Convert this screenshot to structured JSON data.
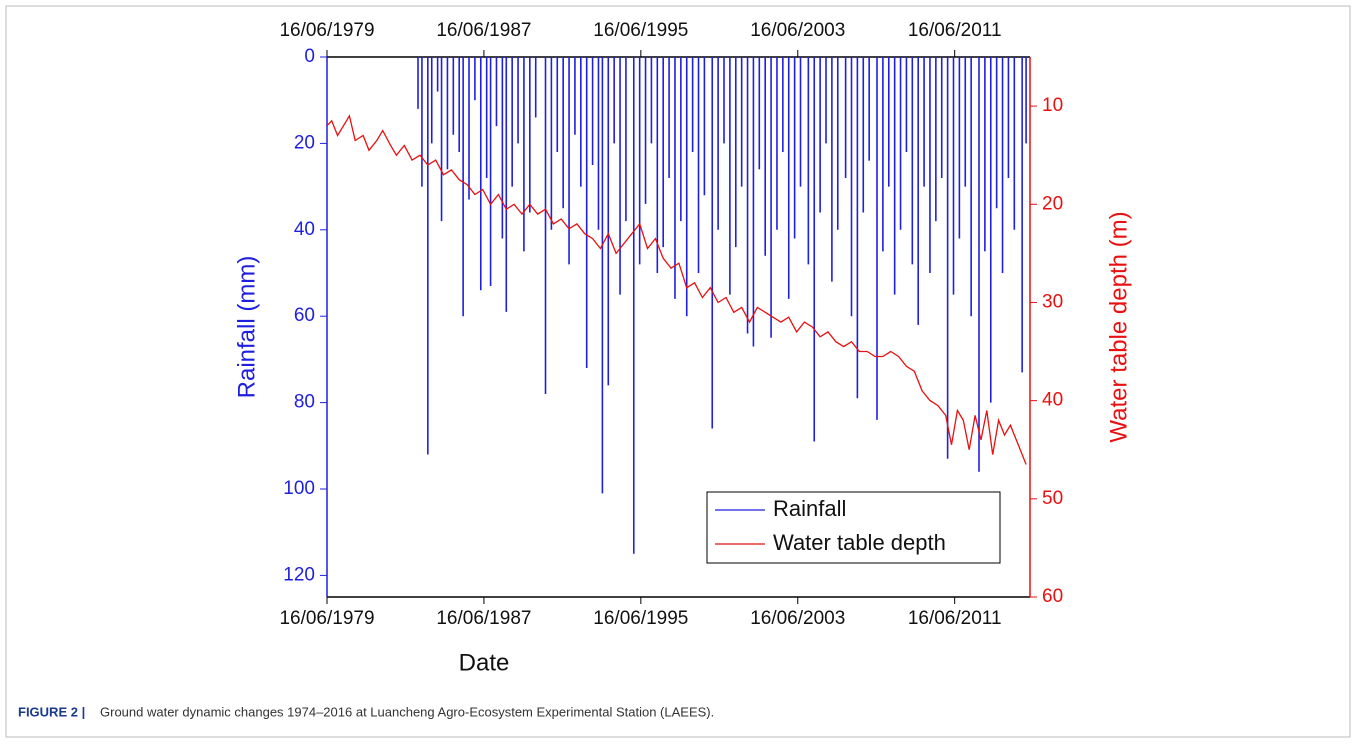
{
  "chart_data": {
    "type": "spike-line",
    "x_label": "Date",
    "y_label": "Rainfall (mm)",
    "y2_label": "Water table depth (m)",
    "caption_label": "FIGURE 2 |",
    "caption": "Ground water dynamic changes 1974–2016 at Luancheng Agro-Ecosystem Experimental Station (LAEES).",
    "xlim": [
      1979.46,
      2015.3
    ],
    "xticks": [
      {
        "value": 1979.46,
        "label": "16/06/1979"
      },
      {
        "value": 1987.46,
        "label": "16/06/1987"
      },
      {
        "value": 1995.46,
        "label": "16/06/1995"
      },
      {
        "value": 2003.46,
        "label": "16/06/2003"
      },
      {
        "value": 2011.46,
        "label": "16/06/2011"
      }
    ],
    "ylim": [
      0,
      125
    ],
    "yticks": [
      0,
      20,
      40,
      60,
      80,
      100,
      120
    ],
    "y_reversed": true,
    "y_color": "#1f1fe0",
    "y2lim": [
      5,
      60
    ],
    "y2ticks": [
      10,
      20,
      30,
      40,
      50,
      60
    ],
    "y2_reversed": true,
    "y2_color": "#e81010",
    "legend": "lower-right",
    "series": [
      {
        "name": "Rainfall",
        "color": "#1f1fe0",
        "style": "spikes",
        "x": [
          1984.1,
          1984.3,
          1984.6,
          1984.8,
          1985.1,
          1985.3,
          1985.6,
          1985.9,
          1986.2,
          1986.4,
          1986.7,
          1987.0,
          1987.3,
          1987.6,
          1987.8,
          1988.1,
          1988.4,
          1988.6,
          1988.9,
          1989.2,
          1989.5,
          1989.8,
          1990.1,
          1990.6,
          1990.9,
          1991.2,
          1991.5,
          1991.8,
          1992.1,
          1992.4,
          1992.7,
          1993.0,
          1993.3,
          1993.5,
          1993.8,
          1994.1,
          1994.4,
          1994.7,
          1995.1,
          1995.4,
          1995.7,
          1996.0,
          1996.3,
          1996.6,
          1996.9,
          1997.2,
          1997.5,
          1997.8,
          1998.1,
          1998.4,
          1998.7,
          1999.1,
          1999.4,
          1999.7,
          2000.0,
          2000.3,
          2000.6,
          2000.9,
          2001.2,
          2001.5,
          2001.8,
          2002.1,
          2002.4,
          2002.7,
          2003.0,
          2003.3,
          2003.6,
          2004.0,
          2004.3,
          2004.6,
          2004.9,
          2005.2,
          2005.5,
          2005.9,
          2006.2,
          2006.5,
          2006.8,
          2007.1,
          2007.5,
          2007.8,
          2008.1,
          2008.4,
          2008.7,
          2009.0,
          2009.3,
          2009.6,
          2009.9,
          2010.2,
          2010.5,
          2010.8,
          2011.1,
          2011.4,
          2011.7,
          2012.0,
          2012.3,
          2012.7,
          2013.0,
          2013.3,
          2013.6,
          2013.9,
          2014.2,
          2014.5,
          2014.9,
          2015.1
        ],
        "values": [
          12,
          30,
          92,
          20,
          8,
          38,
          26,
          18,
          22,
          60,
          33,
          10,
          54,
          28,
          53,
          16,
          42,
          59,
          30,
          20,
          45,
          36,
          14,
          78,
          40,
          22,
          35,
          48,
          18,
          30,
          72,
          25,
          40,
          101,
          76,
          20,
          55,
          38,
          115,
          48,
          34,
          20,
          50,
          44,
          28,
          56,
          38,
          60,
          22,
          50,
          32,
          86,
          40,
          20,
          55,
          44,
          30,
          64,
          67,
          26,
          46,
          65,
          40,
          22,
          56,
          42,
          30,
          48,
          89,
          36,
          20,
          52,
          40,
          28,
          60,
          79,
          36,
          24,
          84,
          45,
          30,
          55,
          40,
          22,
          48,
          62,
          30,
          50,
          38,
          28,
          93,
          55,
          42,
          30,
          60,
          96,
          45,
          80,
          35,
          50,
          28,
          40,
          73,
          20
        ]
      },
      {
        "name": "Water table depth",
        "color": "#e81010",
        "style": "line",
        "axis": "y2",
        "x": [
          1979.46,
          1979.7,
          1980.0,
          1980.3,
          1980.6,
          1980.9,
          1981.3,
          1981.6,
          1982.0,
          1982.3,
          1982.7,
          1983.0,
          1983.4,
          1983.8,
          1984.2,
          1984.6,
          1985.0,
          1985.4,
          1985.8,
          1986.2,
          1986.6,
          1987.0,
          1987.4,
          1987.8,
          1988.2,
          1988.6,
          1989.0,
          1989.4,
          1989.8,
          1990.2,
          1990.6,
          1991.0,
          1991.4,
          1991.8,
          1992.2,
          1992.6,
          1993.0,
          1993.4,
          1993.8,
          1994.2,
          1994.6,
          1995.0,
          1995.4,
          1995.8,
          1996.2,
          1996.6,
          1997.0,
          1997.4,
          1997.8,
          1998.2,
          1998.6,
          1999.0,
          1999.4,
          1999.8,
          2000.2,
          2000.6,
          2001.0,
          2001.4,
          2001.8,
          2002.2,
          2002.6,
          2003.0,
          2003.4,
          2003.8,
          2004.2,
          2004.6,
          2005.0,
          2005.4,
          2005.8,
          2006.2,
          2006.6,
          2007.0,
          2007.4,
          2007.8,
          2008.2,
          2008.6,
          2009.0,
          2009.4,
          2009.8,
          2010.2,
          2010.6,
          2011.0,
          2011.3,
          2011.6,
          2011.9,
          2012.2,
          2012.5,
          2012.8,
          2013.1,
          2013.4,
          2013.7,
          2014.0,
          2014.3,
          2014.6,
          2014.9,
          2015.1
        ],
        "values": [
          12,
          11.5,
          13,
          12,
          11,
          13.5,
          13,
          14.5,
          13.5,
          12.5,
          14,
          15,
          14,
          15.5,
          15,
          16,
          15.5,
          17,
          16.5,
          17.5,
          18,
          19,
          18.5,
          20,
          19,
          20.5,
          20,
          21,
          20,
          21,
          20.5,
          22,
          21.5,
          22.5,
          22,
          23,
          23.5,
          24.5,
          23,
          25,
          24,
          23,
          22,
          24.5,
          23.5,
          25.5,
          26.5,
          26,
          28.5,
          28,
          29.5,
          28.5,
          30,
          29.5,
          31,
          30.5,
          32,
          30.5,
          31,
          31.5,
          32,
          31.5,
          33,
          32,
          32.5,
          33.5,
          33,
          34,
          34.5,
          34,
          35,
          35,
          35.5,
          35.5,
          35,
          35.5,
          36.5,
          37,
          39,
          40,
          40.5,
          41.5,
          44.5,
          41,
          42,
          45,
          41.5,
          44,
          41,
          45.5,
          42,
          43.5,
          42.5,
          44,
          45.5,
          46.5
        ]
      }
    ]
  }
}
